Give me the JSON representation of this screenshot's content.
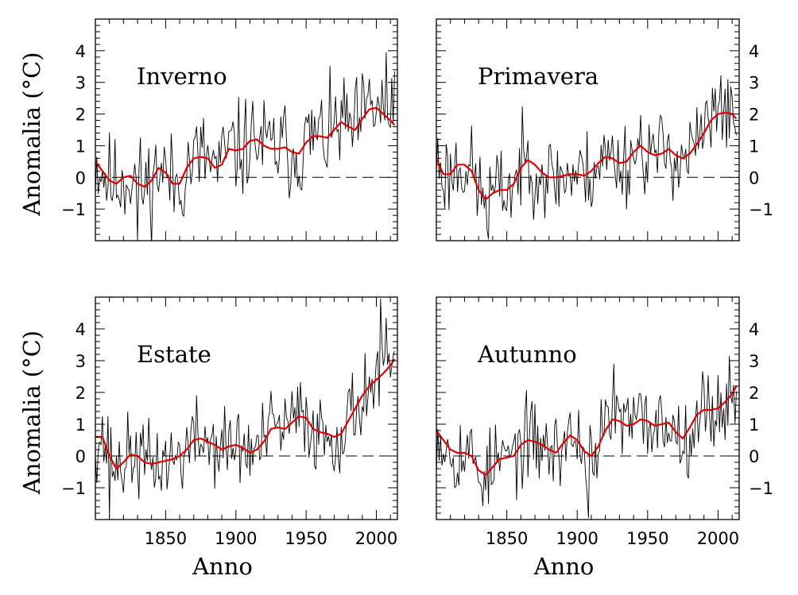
{
  "chart_data": [
    {
      "type": "line",
      "title": "Inverno",
      "xlabel": "",
      "ylabel": "Anomalia  (°C)",
      "xlim": [
        1800,
        2015
      ],
      "ylim": [
        -2,
        5
      ],
      "x_ticks": [
        1850,
        1900,
        1950,
        2000
      ],
      "y_ticks": [
        -1,
        0,
        1,
        2,
        3,
        4
      ],
      "reference_line": 0,
      "smooth_points": [
        [
          1800,
          0.5
        ],
        [
          1805,
          0.2
        ],
        [
          1810,
          -0.1
        ],
        [
          1815,
          -0.2
        ],
        [
          1820,
          0.0
        ],
        [
          1825,
          0.05
        ],
        [
          1830,
          -0.2
        ],
        [
          1835,
          -0.3
        ],
        [
          1840,
          -0.1
        ],
        [
          1845,
          0.3
        ],
        [
          1850,
          0.15
        ],
        [
          1855,
          -0.2
        ],
        [
          1860,
          -0.2
        ],
        [
          1865,
          0.3
        ],
        [
          1870,
          0.6
        ],
        [
          1875,
          0.65
        ],
        [
          1880,
          0.6
        ],
        [
          1885,
          0.3
        ],
        [
          1890,
          0.4
        ],
        [
          1895,
          0.9
        ],
        [
          1900,
          0.85
        ],
        [
          1905,
          0.9
        ],
        [
          1910,
          1.15
        ],
        [
          1915,
          1.2
        ],
        [
          1920,
          1.0
        ],
        [
          1925,
          0.9
        ],
        [
          1930,
          0.9
        ],
        [
          1935,
          0.95
        ],
        [
          1940,
          0.8
        ],
        [
          1945,
          0.75
        ],
        [
          1950,
          1.1
        ],
        [
          1955,
          1.3
        ],
        [
          1960,
          1.3
        ],
        [
          1965,
          1.25
        ],
        [
          1970,
          1.5
        ],
        [
          1975,
          1.75
        ],
        [
          1980,
          1.6
        ],
        [
          1985,
          1.5
        ],
        [
          1990,
          1.85
        ],
        [
          1995,
          2.15
        ],
        [
          2000,
          2.2
        ],
        [
          2005,
          2.0
        ],
        [
          2010,
          1.8
        ],
        [
          2013,
          1.65
        ]
      ],
      "annual_series": {
        "start_year": 1800,
        "seed": 11,
        "amplitude": 0.95,
        "max_value": 3.95,
        "max_year": 2007,
        "min_value": -1.95,
        "min_year": 1830
      }
    },
    {
      "type": "line",
      "title": "Primavera",
      "xlabel": "",
      "ylabel": "",
      "xlim": [
        1800,
        2015
      ],
      "ylim": [
        -2,
        5
      ],
      "x_ticks": [
        1850,
        1900,
        1950,
        2000
      ],
      "y_ticks": [
        -1,
        0,
        1,
        2,
        3,
        4
      ],
      "reference_line": 0,
      "smooth_points": [
        [
          1800,
          0.6
        ],
        [
          1805,
          0.1
        ],
        [
          1810,
          0.1
        ],
        [
          1815,
          0.4
        ],
        [
          1820,
          0.4
        ],
        [
          1825,
          0.2
        ],
        [
          1830,
          -0.4
        ],
        [
          1835,
          -0.7
        ],
        [
          1840,
          -0.5
        ],
        [
          1845,
          -0.4
        ],
        [
          1850,
          -0.4
        ],
        [
          1855,
          -0.2
        ],
        [
          1860,
          0.3
        ],
        [
          1865,
          0.55
        ],
        [
          1870,
          0.4
        ],
        [
          1875,
          0.15
        ],
        [
          1880,
          0.0
        ],
        [
          1885,
          0.0
        ],
        [
          1890,
          0.05
        ],
        [
          1895,
          0.1
        ],
        [
          1900,
          0.1
        ],
        [
          1905,
          0.05
        ],
        [
          1910,
          0.2
        ],
        [
          1915,
          0.45
        ],
        [
          1920,
          0.65
        ],
        [
          1925,
          0.6
        ],
        [
          1930,
          0.45
        ],
        [
          1935,
          0.5
        ],
        [
          1940,
          0.8
        ],
        [
          1945,
          1.0
        ],
        [
          1950,
          0.8
        ],
        [
          1955,
          0.7
        ],
        [
          1960,
          0.75
        ],
        [
          1965,
          0.9
        ],
        [
          1970,
          0.7
        ],
        [
          1975,
          0.6
        ],
        [
          1980,
          0.75
        ],
        [
          1985,
          1.05
        ],
        [
          1990,
          1.4
        ],
        [
          1995,
          1.8
        ],
        [
          2000,
          2.0
        ],
        [
          2005,
          2.05
        ],
        [
          2010,
          2.0
        ],
        [
          2013,
          1.85
        ]
      ],
      "annual_series": {
        "start_year": 1800,
        "seed": 23,
        "amplitude": 0.85,
        "max_value": 3.1,
        "max_year": 2007,
        "min_value": -1.95,
        "min_year": 1837
      }
    },
    {
      "type": "line",
      "title": "Estate",
      "xlabel": "Anno",
      "ylabel": "Anomalia  (°C)",
      "xlim": [
        1800,
        2015
      ],
      "ylim": [
        -2,
        5
      ],
      "x_ticks": [
        1850,
        1900,
        1950,
        2000
      ],
      "y_ticks": [
        -1,
        0,
        1,
        2,
        3,
        4
      ],
      "reference_line": 0,
      "smooth_points": [
        [
          1800,
          0.6
        ],
        [
          1805,
          0.6
        ],
        [
          1810,
          0.0
        ],
        [
          1815,
          -0.4
        ],
        [
          1820,
          -0.2
        ],
        [
          1825,
          0.05
        ],
        [
          1830,
          0.0
        ],
        [
          1835,
          -0.2
        ],
        [
          1840,
          -0.25
        ],
        [
          1845,
          -0.2
        ],
        [
          1850,
          -0.15
        ],
        [
          1855,
          -0.1
        ],
        [
          1860,
          0.0
        ],
        [
          1865,
          0.2
        ],
        [
          1870,
          0.5
        ],
        [
          1875,
          0.55
        ],
        [
          1880,
          0.45
        ],
        [
          1885,
          0.35
        ],
        [
          1890,
          0.2
        ],
        [
          1895,
          0.3
        ],
        [
          1900,
          0.35
        ],
        [
          1905,
          0.25
        ],
        [
          1910,
          0.1
        ],
        [
          1915,
          0.2
        ],
        [
          1920,
          0.45
        ],
        [
          1925,
          0.85
        ],
        [
          1930,
          0.9
        ],
        [
          1935,
          0.85
        ],
        [
          1940,
          1.05
        ],
        [
          1945,
          1.25
        ],
        [
          1950,
          1.2
        ],
        [
          1955,
          0.85
        ],
        [
          1960,
          0.75
        ],
        [
          1965,
          0.7
        ],
        [
          1970,
          0.6
        ],
        [
          1975,
          0.7
        ],
        [
          1980,
          1.1
        ],
        [
          1985,
          1.5
        ],
        [
          1990,
          1.9
        ],
        [
          1995,
          2.2
        ],
        [
          2000,
          2.4
        ],
        [
          2005,
          2.6
        ],
        [
          2010,
          2.85
        ],
        [
          2013,
          3.05
        ]
      ],
      "annual_series": {
        "start_year": 1800,
        "seed": 37,
        "amplitude": 0.8,
        "max_value": 4.95,
        "max_year": 2003,
        "min_value": -1.95,
        "min_year": 1810
      }
    },
    {
      "type": "line",
      "title": "Autunno",
      "xlabel": "Anno",
      "ylabel": "",
      "xlim": [
        1800,
        2015
      ],
      "ylim": [
        -2,
        5
      ],
      "x_ticks": [
        1850,
        1900,
        1950,
        2000
      ],
      "y_ticks": [
        -1,
        0,
        1,
        2,
        3,
        4
      ],
      "reference_line": 0,
      "smooth_points": [
        [
          1800,
          0.8
        ],
        [
          1805,
          0.5
        ],
        [
          1810,
          0.2
        ],
        [
          1815,
          0.1
        ],
        [
          1820,
          0.1
        ],
        [
          1825,
          0.0
        ],
        [
          1830,
          -0.45
        ],
        [
          1835,
          -0.6
        ],
        [
          1840,
          -0.35
        ],
        [
          1845,
          -0.1
        ],
        [
          1850,
          -0.05
        ],
        [
          1855,
          0.0
        ],
        [
          1860,
          0.35
        ],
        [
          1865,
          0.5
        ],
        [
          1870,
          0.45
        ],
        [
          1875,
          0.35
        ],
        [
          1880,
          0.2
        ],
        [
          1885,
          0.1
        ],
        [
          1890,
          0.4
        ],
        [
          1895,
          0.65
        ],
        [
          1900,
          0.5
        ],
        [
          1905,
          0.15
        ],
        [
          1910,
          0.0
        ],
        [
          1915,
          0.3
        ],
        [
          1920,
          0.8
        ],
        [
          1925,
          1.15
        ],
        [
          1930,
          1.1
        ],
        [
          1935,
          0.95
        ],
        [
          1940,
          1.0
        ],
        [
          1945,
          1.15
        ],
        [
          1950,
          1.1
        ],
        [
          1955,
          0.95
        ],
        [
          1960,
          1.0
        ],
        [
          1965,
          1.05
        ],
        [
          1970,
          0.75
        ],
        [
          1975,
          0.55
        ],
        [
          1980,
          0.9
        ],
        [
          1985,
          1.3
        ],
        [
          1990,
          1.45
        ],
        [
          1995,
          1.45
        ],
        [
          2000,
          1.5
        ],
        [
          2005,
          1.7
        ],
        [
          2010,
          1.95
        ],
        [
          2013,
          2.2
        ]
      ],
      "annual_series": {
        "start_year": 1800,
        "seed": 53,
        "amplitude": 0.8,
        "max_value": 2.9,
        "max_year": 1926,
        "min_value": -1.95,
        "min_year": 1908
      }
    }
  ],
  "colors": {
    "smooth_line": "#e00000",
    "annual_line": "#000000",
    "frame": "#000000",
    "background": "#ffffff"
  }
}
